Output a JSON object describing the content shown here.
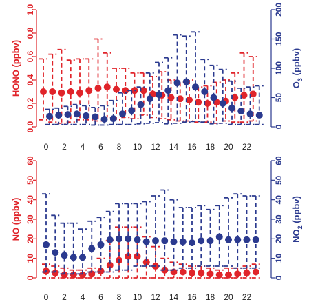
{
  "chart_data": [
    {
      "type": "line",
      "panel": "top",
      "x": [
        0,
        1,
        2,
        3,
        4,
        5,
        6,
        7,
        8,
        9,
        10,
        11,
        12,
        13,
        14,
        15,
        16,
        17,
        18,
        19,
        20,
        21,
        22,
        23
      ],
      "x_ticks": [
        "0",
        "2",
        "4",
        "6",
        "8",
        "10",
        "12",
        "14",
        "16",
        "18",
        "20",
        "22"
      ],
      "left_axis": {
        "label": "HONO (ppbv)",
        "ylim": [
          0,
          1.0
        ],
        "ticks": [
          "0.0",
          "0.2",
          "0.4",
          "0.6",
          "0.8",
          "1.0"
        ],
        "color": "#e0242a"
      },
      "right_axis": {
        "label_main": "O",
        "label_sub": "3",
        "label_rest": " (ppbv)",
        "ylim": [
          0,
          200
        ],
        "ticks": [
          "0",
          "50",
          "100",
          "150",
          "200"
        ],
        "color": "#2b3a8f"
      },
      "series": [
        {
          "axis": "left",
          "values": [
            0.3,
            0.3,
            0.29,
            0.3,
            0.29,
            0.31,
            0.33,
            0.34,
            0.32,
            0.31,
            0.31,
            0.31,
            0.28,
            0.27,
            0.25,
            0.24,
            0.23,
            0.21,
            0.2,
            0.21,
            0.22,
            0.25,
            0.27,
            0.28
          ],
          "upper": [
            0.58,
            0.62,
            0.66,
            0.57,
            0.58,
            0.58,
            0.75,
            0.63,
            0.5,
            0.5,
            0.46,
            0.46,
            0.43,
            0.47,
            0.4,
            0.38,
            0.4,
            0.34,
            0.35,
            0.38,
            0.4,
            0.46,
            0.63,
            0.6
          ],
          "lower": [
            0.06,
            0.04,
            0.03,
            0.04,
            0.06,
            0.06,
            0.05,
            0.08,
            0.06,
            0.08,
            0.07,
            0.1,
            0.08,
            0.07,
            0.06,
            0.05,
            0.05,
            0.04,
            0.04,
            0.03,
            0.05,
            0.04,
            0.04,
            0.05
          ]
        },
        {
          "axis": "right",
          "values": [
            18,
            20,
            21,
            22,
            19,
            17,
            13,
            14,
            22,
            28,
            38,
            48,
            55,
            62,
            75,
            77,
            68,
            60,
            50,
            40,
            32,
            27,
            22,
            20
          ],
          "upper": [
            30,
            32,
            35,
            38,
            36,
            33,
            36,
            45,
            58,
            62,
            68,
            92,
            110,
            118,
            157,
            155,
            162,
            115,
            105,
            98,
            78,
            66,
            68,
            70
          ],
          "lower": [
            4,
            4,
            4,
            4,
            4,
            3,
            3,
            4,
            4,
            4,
            5,
            6,
            7,
            5,
            6,
            8,
            9,
            8,
            5,
            6,
            4,
            4,
            4,
            4
          ]
        }
      ]
    },
    {
      "type": "line",
      "panel": "bottom",
      "x": [
        0,
        1,
        2,
        3,
        4,
        5,
        6,
        7,
        8,
        9,
        10,
        11,
        12,
        13,
        14,
        15,
        16,
        17,
        18,
        19,
        20,
        21,
        22,
        23
      ],
      "x_ticks": [
        "0",
        "2",
        "4",
        "6",
        "8",
        "10",
        "12",
        "14",
        "16",
        "18",
        "20",
        "22"
      ],
      "left_axis": {
        "label": "NO (ppbv)",
        "ylim": [
          0,
          60
        ],
        "ticks": [
          "0",
          "10",
          "20",
          "30",
          "40",
          "50",
          "60"
        ],
        "color": "#e0242a"
      },
      "right_axis": {
        "label_main": "NO",
        "label_sub": "2",
        "label_rest": " (ppbv)",
        "ylim": [
          0,
          60
        ],
        "ticks": [
          "0",
          "10",
          "20",
          "30",
          "40",
          "50",
          "60"
        ],
        "color": "#2b3a8f"
      },
      "series": [
        {
          "axis": "left",
          "values": [
            3.5,
            2.5,
            1.5,
            1.5,
            1.5,
            2,
            3.5,
            6.5,
            9,
            11,
            11,
            8,
            6,
            4,
            3,
            3,
            2.5,
            2.5,
            2,
            1.5,
            1.5,
            2,
            2.5,
            3
          ],
          "upper": [
            7,
            6,
            5,
            4,
            4,
            5,
            10,
            19,
            26,
            26,
            26,
            21,
            16,
            10,
            8,
            7,
            6,
            6,
            5,
            4,
            5,
            5,
            6,
            7
          ],
          "lower": [
            0,
            0,
            0,
            0,
            0,
            0,
            0,
            0,
            0,
            0,
            0,
            0,
            0,
            0,
            0,
            0,
            0,
            0,
            0,
            0,
            0,
            0,
            0,
            0
          ]
        },
        {
          "axis": "right",
          "values": [
            17,
            13,
            11.5,
            10.5,
            10.5,
            15,
            17,
            19.5,
            20,
            20,
            19.5,
            18.5,
            19,
            19,
            18.5,
            18.5,
            18,
            19,
            19,
            21,
            19.5,
            19.5,
            19.5,
            19.5
          ],
          "upper": [
            43,
            32,
            28,
            28,
            25,
            29,
            31,
            34,
            38,
            38,
            38,
            39,
            42,
            45,
            40,
            36,
            36,
            37,
            35,
            37,
            41,
            43,
            42,
            42
          ],
          "lower": [
            3,
            3,
            2,
            2,
            2,
            3,
            3,
            3,
            4,
            4,
            6,
            6,
            6,
            4,
            4,
            5,
            5,
            6,
            6,
            6,
            6,
            5,
            5,
            5
          ]
        }
      ]
    }
  ]
}
